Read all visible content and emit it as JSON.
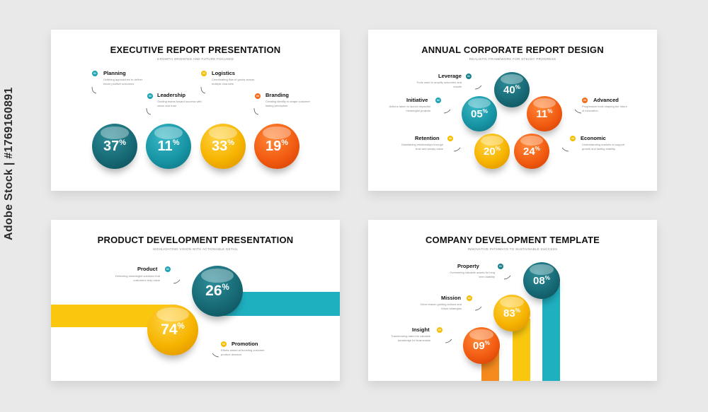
{
  "watermark": "Adobe Stock | #1769160891",
  "slide1": {
    "title": "EXECUTIVE REPORT PRESENTATION",
    "subtitle": "GROWTH ORIENTED AND FUTURE FOCUSED",
    "items": [
      {
        "num": "01",
        "label": "Planning",
        "desc": "Outlining approaches to deliver future positive outcomes"
      },
      {
        "num": "02",
        "label": "Leadership",
        "desc": "Guiding teams toward success with vision and trust"
      },
      {
        "num": "03",
        "label": "Logistics",
        "desc": "Coordinating flow of goods across multiple channels"
      },
      {
        "num": "04",
        "label": "Branding",
        "desc": "Creating identity to shape customer lasting perception"
      }
    ],
    "values": [
      {
        "n": "37",
        "p": "%"
      },
      {
        "n": "11",
        "p": "%"
      },
      {
        "n": "33",
        "p": "%"
      },
      {
        "n": "19",
        "p": "%"
      }
    ]
  },
  "slide2": {
    "title": "ANNUAL CORPORATE REPORT DESIGN",
    "subtitle": "REALISTIC FRAMEWORK FOR STEADY PROGRESS",
    "items": [
      {
        "num": "01",
        "label": "Leverage",
        "desc": "Tools used to amplify outcomes and results"
      },
      {
        "num": "02",
        "label": "Initiative",
        "desc": "Actions taken to launch impactful meaningful projects"
      },
      {
        "num": "03",
        "label": "Retention",
        "desc": "Maintaining relationships through trust and steady value"
      },
      {
        "num": "04",
        "label": "Advanced",
        "desc": "Progressive tools shaping the future of innovation"
      },
      {
        "num": "05",
        "label": "Economic",
        "desc": "Understanding markets to support growth and lasting stability"
      }
    ],
    "values": [
      {
        "n": "40",
        "p": "%"
      },
      {
        "n": "05",
        "p": "%"
      },
      {
        "n": "11",
        "p": "%"
      },
      {
        "n": "20",
        "p": "%"
      },
      {
        "n": "24",
        "p": "%"
      }
    ]
  },
  "slide3": {
    "title": "PRODUCT DEVELOPMENT PRESENTATION",
    "subtitle": "HIGHLIGHTING VISION WITH ACTIONABLE DETAIL",
    "items": [
      {
        "num": "01",
        "label": "Product",
        "desc": "Delivering meaningful solutions that customers truly value"
      },
      {
        "num": "02",
        "label": "Promotion",
        "desc": "Efforts aimed at boosting customer product demand"
      }
    ],
    "values": [
      {
        "n": "26",
        "p": "%"
      },
      {
        "n": "74",
        "p": "%"
      }
    ]
  },
  "slide4": {
    "title": "COMPANY DEVELOPMENT TEMPLATE",
    "subtitle": "INNOVATIVE PATHWAYS TO SUSTAINABLE SUCCESS",
    "items": [
      {
        "num": "01",
        "label": "Property",
        "desc": "Overseeing valuable assets for long term stability"
      },
      {
        "num": "02",
        "label": "Mission",
        "desc": "Clear reason guiding actions and future strategies"
      },
      {
        "num": "03",
        "label": "Insight",
        "desc": "Transforming data into valuable knowledge for businesses"
      }
    ],
    "values": [
      {
        "n": "08",
        "p": "%"
      },
      {
        "n": "83",
        "p": "%"
      },
      {
        "n": "09",
        "p": "%"
      }
    ]
  }
}
